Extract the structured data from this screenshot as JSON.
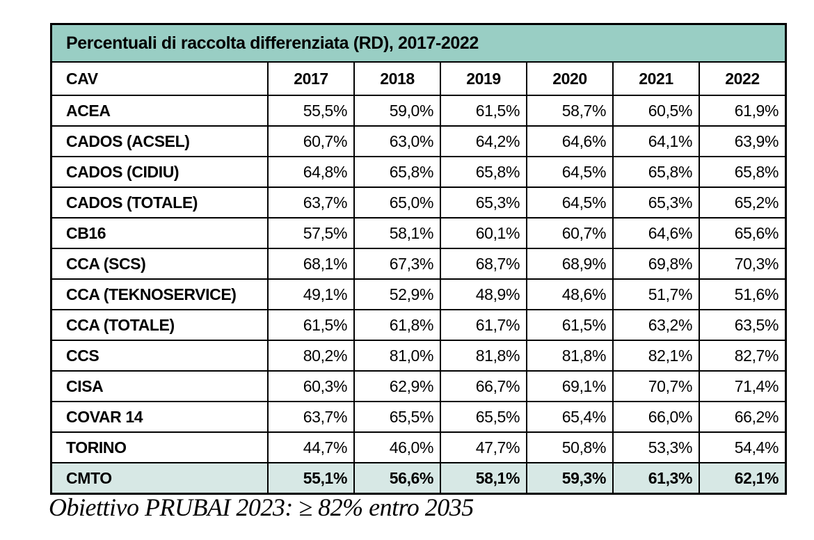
{
  "title": "Percentuali di raccolta differenziata (RD), 2017-2022",
  "footer": "Obiettivo PRUBAI 2023: ≥ 82% entro 2035",
  "table": {
    "columns": [
      "CAV",
      "2017",
      "2018",
      "2019",
      "2020",
      "2021",
      "2022"
    ],
    "rows": [
      {
        "label": "ACEA",
        "values": [
          "55,5%",
          "59,0%",
          "61,5%",
          "58,7%",
          "60,5%",
          "61,9%"
        ],
        "highlight": false
      },
      {
        "label": "CADOS (ACSEL)",
        "values": [
          "60,7%",
          "63,0%",
          "64,2%",
          "64,6%",
          "64,1%",
          "63,9%"
        ],
        "highlight": false
      },
      {
        "label": "CADOS (CIDIU)",
        "values": [
          "64,8%",
          "65,8%",
          "65,8%",
          "64,5%",
          "65,8%",
          "65,8%"
        ],
        "highlight": false
      },
      {
        "label": "CADOS (TOTALE)",
        "values": [
          "63,7%",
          "65,0%",
          "65,3%",
          "64,5%",
          "65,3%",
          "65,2%"
        ],
        "highlight": false
      },
      {
        "label": "CB16",
        "values": [
          "57,5%",
          "58,1%",
          "60,1%",
          "60,7%",
          "64,6%",
          "65,6%"
        ],
        "highlight": false
      },
      {
        "label": "CCA (SCS)",
        "values": [
          "68,1%",
          "67,3%",
          "68,7%",
          "68,9%",
          "69,8%",
          "70,3%"
        ],
        "highlight": false
      },
      {
        "label": "CCA (TEKNOSERVICE)",
        "values": [
          "49,1%",
          "52,9%",
          "48,9%",
          "48,6%",
          "51,7%",
          "51,6%"
        ],
        "highlight": false
      },
      {
        "label": "CCA (TOTALE)",
        "values": [
          "61,5%",
          "61,8%",
          "61,7%",
          "61,5%",
          "63,2%",
          "63,5%"
        ],
        "highlight": false
      },
      {
        "label": "CCS",
        "values": [
          "80,2%",
          "81,0%",
          "81,8%",
          "81,8%",
          "82,1%",
          "82,7%"
        ],
        "highlight": false
      },
      {
        "label": "CISA",
        "values": [
          "60,3%",
          "62,9%",
          "66,7%",
          "69,1%",
          "70,7%",
          "71,4%"
        ],
        "highlight": false
      },
      {
        "label": "COVAR 14",
        "values": [
          "63,7%",
          "65,5%",
          "65,5%",
          "65,4%",
          "66,0%",
          "66,2%"
        ],
        "highlight": false
      },
      {
        "label": "TORINO",
        "values": [
          "44,7%",
          "46,0%",
          "47,7%",
          "50,8%",
          "53,3%",
          "54,4%"
        ],
        "highlight": false
      },
      {
        "label": "CMTO",
        "values": [
          "55,1%",
          "56,6%",
          "58,1%",
          "59,3%",
          "61,3%",
          "62,1%"
        ],
        "highlight": true
      }
    ]
  },
  "chart_data": {
    "type": "table",
    "title": "Percentuali di raccolta differenziata (RD), 2017-2022",
    "categories": [
      2017,
      2018,
      2019,
      2020,
      2021,
      2022
    ],
    "unit": "%",
    "series": [
      {
        "name": "ACEA",
        "values": [
          55.5,
          59.0,
          61.5,
          58.7,
          60.5,
          61.9
        ]
      },
      {
        "name": "CADOS (ACSEL)",
        "values": [
          60.7,
          63.0,
          64.2,
          64.6,
          64.1,
          63.9
        ]
      },
      {
        "name": "CADOS (CIDIU)",
        "values": [
          64.8,
          65.8,
          65.8,
          64.5,
          65.8,
          65.8
        ]
      },
      {
        "name": "CADOS (TOTALE)",
        "values": [
          63.7,
          65.0,
          65.3,
          64.5,
          65.3,
          65.2
        ]
      },
      {
        "name": "CB16",
        "values": [
          57.5,
          58.1,
          60.1,
          60.7,
          64.6,
          65.6
        ]
      },
      {
        "name": "CCA (SCS)",
        "values": [
          68.1,
          67.3,
          68.7,
          68.9,
          69.8,
          70.3
        ]
      },
      {
        "name": "CCA (TEKNOSERVICE)",
        "values": [
          49.1,
          52.9,
          48.9,
          48.6,
          51.7,
          51.6
        ]
      },
      {
        "name": "CCA (TOTALE)",
        "values": [
          61.5,
          61.8,
          61.7,
          61.5,
          63.2,
          63.5
        ]
      },
      {
        "name": "CCS",
        "values": [
          80.2,
          81.0,
          81.8,
          81.8,
          82.1,
          82.7
        ]
      },
      {
        "name": "CISA",
        "values": [
          60.3,
          62.9,
          66.7,
          69.1,
          70.7,
          71.4
        ]
      },
      {
        "name": "COVAR 14",
        "values": [
          63.7,
          65.5,
          65.5,
          65.4,
          66.0,
          66.2
        ]
      },
      {
        "name": "TORINO",
        "values": [
          44.7,
          46.0,
          47.7,
          50.8,
          53.3,
          54.4
        ]
      },
      {
        "name": "CMTO",
        "values": [
          55.1,
          56.6,
          58.1,
          59.3,
          61.3,
          62.1
        ]
      }
    ],
    "annotation": "Obiettivo PRUBAI 2023: ≥ 82% entro 2035"
  },
  "colors": {
    "title_bg": "#99CEC4",
    "highlight_row_bg": "#D7E8E5",
    "border": "#000000",
    "text": "#000000",
    "page_bg": "#FFFFFF"
  }
}
